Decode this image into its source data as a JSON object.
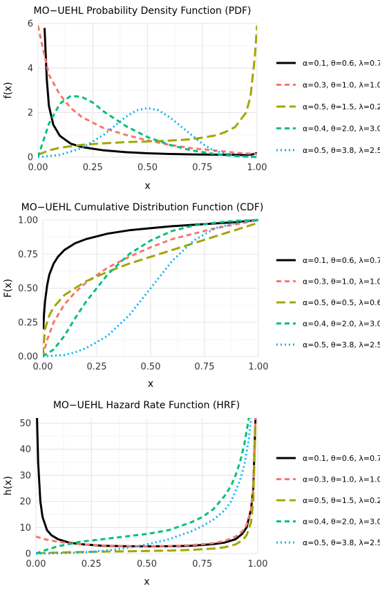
{
  "chart_data": [
    {
      "type": "line",
      "title": "MO−UEHL Probability Density Function (PDF)",
      "xlabel": "x",
      "ylabel": "f(x)",
      "xlim": [
        0,
        1
      ],
      "ylim": [
        0,
        6
      ],
      "xticks": [
        0,
        0.25,
        0.5,
        0.75,
        1
      ],
      "xtick_labels": [
        "0.00",
        "0.25",
        "0.50",
        "0.75",
        "1.00"
      ],
      "yticks": [
        0,
        2,
        4,
        6
      ],
      "ytick_labels": [
        "0",
        "2",
        "4",
        "6"
      ],
      "grid": true,
      "legend_position": "right",
      "series": [
        {
          "name": "α=0.1, θ=0.6, λ=0.7",
          "color": "#000000",
          "dash": "solid",
          "x": [
            0.03,
            0.04,
            0.05,
            0.07,
            0.1,
            0.15,
            0.2,
            0.3,
            0.4,
            0.5,
            0.6,
            0.7,
            0.8,
            0.9,
            0.95,
            0.98,
            1.0
          ],
          "y": [
            5.8,
            3.5,
            2.3,
            1.45,
            0.95,
            0.6,
            0.45,
            0.3,
            0.22,
            0.17,
            0.14,
            0.12,
            0.11,
            0.1,
            0.09,
            0.12,
            0.18
          ]
        },
        {
          "name": "α=0.3, θ=1.0, λ=1.0",
          "color": "#F8766D",
          "dash": "dashed",
          "x": [
            0.0,
            0.02,
            0.05,
            0.1,
            0.15,
            0.2,
            0.3,
            0.4,
            0.5,
            0.6,
            0.7,
            0.8,
            0.9,
            1.0
          ],
          "y": [
            5.9,
            5.0,
            3.7,
            2.8,
            2.2,
            1.8,
            1.3,
            1.0,
            0.75,
            0.55,
            0.4,
            0.3,
            0.2,
            0.13
          ]
        },
        {
          "name": "α=0.5, θ=1.5, λ=0.2",
          "color": "#A3A500",
          "dash": "longdash",
          "x": [
            0.0,
            0.05,
            0.1,
            0.2,
            0.3,
            0.4,
            0.5,
            0.6,
            0.7,
            0.8,
            0.85,
            0.9,
            0.95,
            0.97,
            0.99,
            1.0
          ],
          "y": [
            0.1,
            0.3,
            0.42,
            0.55,
            0.62,
            0.67,
            0.7,
            0.74,
            0.8,
            0.95,
            1.1,
            1.35,
            2.0,
            2.7,
            4.5,
            5.9
          ]
        },
        {
          "name": "α=0.4, θ=2.0, λ=3.0",
          "color": "#00BF7D",
          "dash": "dashed",
          "x": [
            0.0,
            0.05,
            0.1,
            0.15,
            0.2,
            0.25,
            0.3,
            0.4,
            0.5,
            0.6,
            0.7,
            0.8,
            0.9,
            1.0
          ],
          "y": [
            0.0,
            1.5,
            2.4,
            2.75,
            2.7,
            2.45,
            2.05,
            1.4,
            0.9,
            0.55,
            0.3,
            0.15,
            0.04,
            0.0
          ]
        },
        {
          "name": "α=0.5, θ=3.8, λ=2.5",
          "color": "#00B0F6",
          "dash": "dotted",
          "x": [
            0.0,
            0.1,
            0.2,
            0.3,
            0.35,
            0.4,
            0.45,
            0.5,
            0.55,
            0.6,
            0.65,
            0.7,
            0.75,
            0.8,
            0.9,
            1.0
          ],
          "y": [
            0.0,
            0.1,
            0.4,
            1.0,
            1.4,
            1.8,
            2.1,
            2.2,
            2.1,
            1.8,
            1.4,
            1.0,
            0.6,
            0.3,
            0.05,
            0.0
          ]
        }
      ]
    },
    {
      "type": "line",
      "title": "MO−UEHL Cumulative Distribution Function (CDF)",
      "xlabel": "x",
      "ylabel": "F(x)",
      "xlim": [
        0,
        1
      ],
      "ylim": [
        0,
        1
      ],
      "xticks": [
        0,
        0.25,
        0.5,
        0.75,
        1
      ],
      "xtick_labels": [
        "0.00",
        "0.25",
        "0.50",
        "0.75",
        "1.00"
      ],
      "yticks": [
        0,
        0.25,
        0.5,
        0.75,
        1
      ],
      "ytick_labels": [
        "0.00",
        "0.25",
        "0.50",
        "0.75",
        "1.00"
      ],
      "grid": true,
      "legend_position": "right",
      "series": [
        {
          "name": "α=0.1, θ=0.6, λ=0.7",
          "color": "#000000",
          "dash": "solid",
          "x": [
            0.002,
            0.005,
            0.01,
            0.02,
            0.03,
            0.05,
            0.07,
            0.1,
            0.15,
            0.2,
            0.3,
            0.4,
            0.5,
            0.6,
            0.7,
            0.8,
            0.9,
            1.0
          ],
          "y": [
            0.2,
            0.3,
            0.4,
            0.52,
            0.6,
            0.68,
            0.73,
            0.78,
            0.83,
            0.86,
            0.9,
            0.925,
            0.94,
            0.955,
            0.965,
            0.975,
            0.985,
            1.0
          ]
        },
        {
          "name": "α=0.3, θ=1.0, λ=1.0",
          "color": "#F8766D",
          "dash": "dashed",
          "x": [
            0.0,
            0.02,
            0.05,
            0.1,
            0.15,
            0.2,
            0.3,
            0.4,
            0.5,
            0.6,
            0.7,
            0.8,
            0.9,
            1.0
          ],
          "y": [
            0.0,
            0.12,
            0.25,
            0.38,
            0.47,
            0.54,
            0.65,
            0.73,
            0.8,
            0.86,
            0.9,
            0.94,
            0.97,
            1.0
          ]
        },
        {
          "name": "α=0.5, θ=0.5, λ=0.6",
          "color": "#A3A500",
          "dash": "longdash",
          "x": [
            0.0,
            0.01,
            0.03,
            0.05,
            0.1,
            0.15,
            0.2,
            0.3,
            0.4,
            0.5,
            0.6,
            0.7,
            0.8,
            0.9,
            1.0
          ],
          "y": [
            0.0,
            0.2,
            0.3,
            0.36,
            0.45,
            0.5,
            0.55,
            0.62,
            0.68,
            0.73,
            0.78,
            0.83,
            0.88,
            0.93,
            0.98
          ]
        },
        {
          "name": "α=0.4, θ=2.0, λ=3.0",
          "color": "#00BF7D",
          "dash": "dashed",
          "x": [
            0.0,
            0.05,
            0.1,
            0.15,
            0.2,
            0.25,
            0.3,
            0.4,
            0.5,
            0.6,
            0.7,
            0.8,
            0.9,
            1.0
          ],
          "y": [
            0.0,
            0.05,
            0.15,
            0.28,
            0.4,
            0.5,
            0.6,
            0.75,
            0.85,
            0.92,
            0.96,
            0.98,
            0.995,
            1.0
          ]
        },
        {
          "name": "α=0.5, θ=3.8, λ=2.5",
          "color": "#00B0F6",
          "dash": "dotted",
          "x": [
            0.0,
            0.1,
            0.15,
            0.2,
            0.3,
            0.4,
            0.5,
            0.6,
            0.7,
            0.8,
            0.9,
            1.0
          ],
          "y": [
            0.0,
            0.01,
            0.03,
            0.06,
            0.15,
            0.3,
            0.5,
            0.7,
            0.85,
            0.94,
            0.98,
            1.0
          ]
        }
      ]
    },
    {
      "type": "line",
      "title": "MO−UEHL Hazard Rate Function (HRF)",
      "xlabel": "x",
      "ylabel": "h(x)",
      "xlim": [
        0,
        1
      ],
      "ylim": [
        0,
        52
      ],
      "xticks": [
        0,
        0.25,
        0.5,
        0.75,
        1
      ],
      "xtick_labels": [
        "0.00",
        "0.25",
        "0.50",
        "0.75",
        "1.00"
      ],
      "yticks": [
        0,
        10,
        20,
        30,
        40,
        50
      ],
      "ytick_labels": [
        "0",
        "10",
        "20",
        "30",
        "40",
        "50"
      ],
      "grid": true,
      "legend_position": "right",
      "series": [
        {
          "name": "α=0.1, θ=0.6, λ=0.7",
          "color": "#000000",
          "dash": "solid",
          "x": [
            0.005,
            0.01,
            0.02,
            0.03,
            0.05,
            0.07,
            0.1,
            0.15,
            0.2,
            0.3,
            0.4,
            0.5,
            0.6,
            0.7,
            0.8,
            0.85,
            0.9,
            0.93,
            0.95,
            0.97,
            0.98,
            0.99
          ],
          "y": [
            52,
            35,
            20,
            14,
            9,
            7,
            5.5,
            4.2,
            3.6,
            3.0,
            2.8,
            2.75,
            2.8,
            3.0,
            3.6,
            4.2,
            5.5,
            7.5,
            10,
            17,
            25,
            52
          ]
        },
        {
          "name": "α=0.3, θ=1.0, λ=1.0",
          "color": "#F8766D",
          "dash": "dashed",
          "x": [
            0.0,
            0.05,
            0.1,
            0.15,
            0.2,
            0.3,
            0.4,
            0.5,
            0.6,
            0.7,
            0.8,
            0.85,
            0.9,
            0.93,
            0.95,
            0.97,
            0.98,
            0.99
          ],
          "y": [
            6.5,
            5.3,
            4.5,
            4.0,
            3.6,
            3.1,
            2.9,
            2.8,
            2.9,
            3.2,
            4.0,
            4.8,
            6.5,
            8.5,
            11,
            17,
            25,
            52
          ]
        },
        {
          "name": "α=0.5, θ=1.5, λ=0.2",
          "color": "#A3A500",
          "dash": "longdash",
          "x": [
            0.0,
            0.1,
            0.2,
            0.3,
            0.4,
            0.5,
            0.6,
            0.7,
            0.8,
            0.85,
            0.9,
            0.93,
            0.95,
            0.97,
            0.98,
            0.99
          ],
          "y": [
            0.1,
            0.4,
            0.6,
            0.75,
            0.85,
            1.0,
            1.15,
            1.4,
            1.9,
            2.4,
            3.5,
            5.0,
            7.0,
            12,
            20,
            50
          ]
        },
        {
          "name": "α=0.4, θ=2.0, λ=3.0",
          "color": "#00BF7D",
          "dash": "dashed",
          "x": [
            0.0,
            0.05,
            0.1,
            0.2,
            0.3,
            0.4,
            0.5,
            0.6,
            0.7,
            0.75,
            0.8,
            0.85,
            0.88,
            0.9,
            0.92,
            0.94,
            0.96
          ],
          "y": [
            0.0,
            1.5,
            2.8,
            4.5,
            5.5,
            6.5,
            7.5,
            9.0,
            12,
            14,
            17,
            22,
            26,
            30,
            35,
            42,
            52
          ]
        },
        {
          "name": "α=0.5, θ=3.8, λ=2.5",
          "color": "#00B0F6",
          "dash": "dotted",
          "x": [
            0.0,
            0.1,
            0.2,
            0.3,
            0.4,
            0.5,
            0.6,
            0.7,
            0.75,
            0.8,
            0.85,
            0.88,
            0.9,
            0.92,
            0.94,
            0.96,
            0.97
          ],
          "y": [
            0.0,
            0.1,
            0.4,
            1.0,
            2.0,
            3.5,
            5.5,
            8.5,
            10.5,
            13,
            16.5,
            20,
            24,
            28,
            34,
            44,
            52
          ]
        }
      ]
    }
  ]
}
